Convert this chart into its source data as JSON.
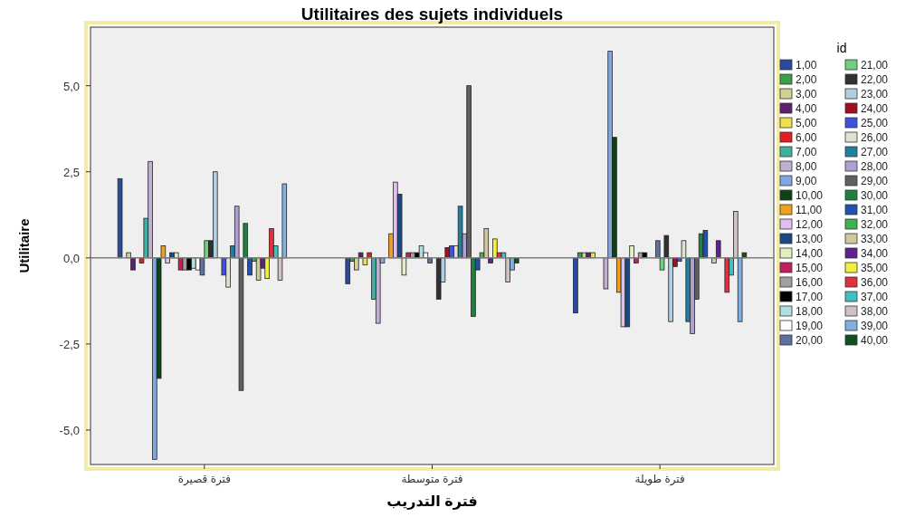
{
  "chart_data": {
    "type": "bar",
    "title": "Utilitaires des sujets individuels",
    "xlabel": "فترة التدريب",
    "ylabel": "Utilitaire",
    "legend_title": "id",
    "legend": "right",
    "grid": false,
    "categories": [
      "فترة قصيرة",
      "فترة متوسطة",
      "فترة طويلة"
    ],
    "ylim": [
      -6,
      6.7
    ],
    "yticks": [
      {
        "value": -5,
        "label": "-5,0"
      },
      {
        "value": -2.5,
        "label": "-2,5"
      },
      {
        "value": 0,
        "label": "0,0"
      },
      {
        "value": 2.5,
        "label": "2,5"
      },
      {
        "value": 5,
        "label": "5,0"
      }
    ],
    "ref_lines": [
      {
        "axis": "y",
        "value": 0,
        "color": "#808080"
      }
    ],
    "series": [
      {
        "name": "1,00",
        "color": "#2a4aa0",
        "values": [
          2.3,
          -0.75,
          -1.6
        ]
      },
      {
        "name": "2,00",
        "color": "#3aa048",
        "values": [
          0,
          -0.1,
          0.15
        ]
      },
      {
        "name": "3,00",
        "color": "#d0d090",
        "values": [
          0.15,
          -0.35,
          0.15
        ]
      },
      {
        "name": "4,00",
        "color": "#602070",
        "values": [
          -0.35,
          0.15,
          0.15
        ]
      },
      {
        "name": "5,00",
        "color": "#f0e050",
        "values": [
          0,
          -0.2,
          0.15
        ]
      },
      {
        "name": "6,00",
        "color": "#e02020",
        "values": [
          -0.15,
          0.15,
          0
        ]
      },
      {
        "name": "7,00",
        "color": "#40b0a0",
        "values": [
          1.15,
          -1.2,
          0
        ]
      },
      {
        "name": "8,00",
        "color": "#c0b0d0",
        "values": [
          2.8,
          -1.9,
          -0.9
        ]
      },
      {
        "name": "9,00",
        "color": "#80a8e0",
        "values": [
          -5.85,
          -0.15,
          6.0
        ]
      },
      {
        "name": "10,00",
        "color": "#104018",
        "values": [
          -3.5,
          0,
          3.5
        ]
      },
      {
        "name": "11,00",
        "color": "#f0a020",
        "values": [
          0.35,
          0.7,
          -1.0
        ]
      },
      {
        "name": "12,00",
        "color": "#e0c0f0",
        "values": [
          -0.15,
          2.2,
          -2.0
        ]
      },
      {
        "name": "13,00",
        "color": "#1a4a80",
        "values": [
          0.15,
          1.85,
          -2.0
        ]
      },
      {
        "name": "14,00",
        "color": "#e0f0c0",
        "values": [
          0.15,
          -0.5,
          0.35
        ]
      },
      {
        "name": "15,00",
        "color": "#c02060",
        "values": [
          -0.35,
          0.15,
          -0.15
        ]
      },
      {
        "name": "16,00",
        "color": "#a0a0a0",
        "values": [
          -0.35,
          0.15,
          0.15
        ]
      },
      {
        "name": "17,00",
        "color": "#000000",
        "values": [
          -0.35,
          0.15,
          0.15
        ]
      },
      {
        "name": "18,00",
        "color": "#b0e0e0",
        "values": [
          -0.3,
          0.35,
          0
        ]
      },
      {
        "name": "19,00",
        "color": "#ffffff",
        "values": [
          -0.35,
          0.15,
          0
        ]
      },
      {
        "name": "20,00",
        "color": "#6070a0",
        "values": [
          -0.5,
          -0.15,
          0.5
        ]
      },
      {
        "name": "21,00",
        "color": "#70d080",
        "values": [
          0.5,
          0,
          -0.35
        ]
      },
      {
        "name": "22,00",
        "color": "#303030",
        "values": [
          0.5,
          -1.2,
          0.65
        ]
      },
      {
        "name": "23,00",
        "color": "#b0d0e0",
        "values": [
          2.5,
          -0.7,
          -1.85
        ]
      },
      {
        "name": "24,00",
        "color": "#a01020",
        "values": [
          0,
          0.3,
          -0.25
        ]
      },
      {
        "name": "25,00",
        "color": "#4050e0",
        "values": [
          -0.5,
          0.35,
          -0.1
        ]
      },
      {
        "name": "26,00",
        "color": "#e0e0d0",
        "values": [
          -0.85,
          0.35,
          0.5
        ]
      },
      {
        "name": "27,00",
        "color": "#2080a0",
        "values": [
          0.35,
          1.5,
          -1.85
        ]
      },
      {
        "name": "28,00",
        "color": "#b0a0d0",
        "values": [
          1.5,
          0.7,
          -2.2
        ]
      },
      {
        "name": "29,00",
        "color": "#606060",
        "values": [
          -3.85,
          5.0,
          -1.2
        ]
      },
      {
        "name": "30,00",
        "color": "#208040",
        "values": [
          1.0,
          -1.7,
          0.7
        ]
      },
      {
        "name": "31,00",
        "color": "#2050b0",
        "values": [
          -0.5,
          -0.35,
          0.8
        ]
      },
      {
        "name": "32,00",
        "color": "#40b050",
        "values": [
          -0.1,
          0.15,
          0
        ]
      },
      {
        "name": "33,00",
        "color": "#d0c8a0",
        "values": [
          -0.65,
          0.85,
          -0.15
        ]
      },
      {
        "name": "34,00",
        "color": "#602090",
        "values": [
          -0.3,
          -0.15,
          0.5
        ]
      },
      {
        "name": "35,00",
        "color": "#f0f040",
        "values": [
          -0.6,
          0.55,
          0
        ]
      },
      {
        "name": "36,00",
        "color": "#e03040",
        "values": [
          0.85,
          0.15,
          -1.0
        ]
      },
      {
        "name": "37,00",
        "color": "#40c0c0",
        "values": [
          0.35,
          0.15,
          -0.5
        ]
      },
      {
        "name": "38,00",
        "color": "#d0c0c8",
        "values": [
          -0.65,
          -0.7,
          1.35
        ]
      },
      {
        "name": "39,00",
        "color": "#80b0e0",
        "values": [
          2.15,
          -0.35,
          -1.85
        ]
      },
      {
        "name": "40,00",
        "color": "#105020",
        "values": [
          0,
          -0.15,
          0.15
        ]
      }
    ]
  }
}
